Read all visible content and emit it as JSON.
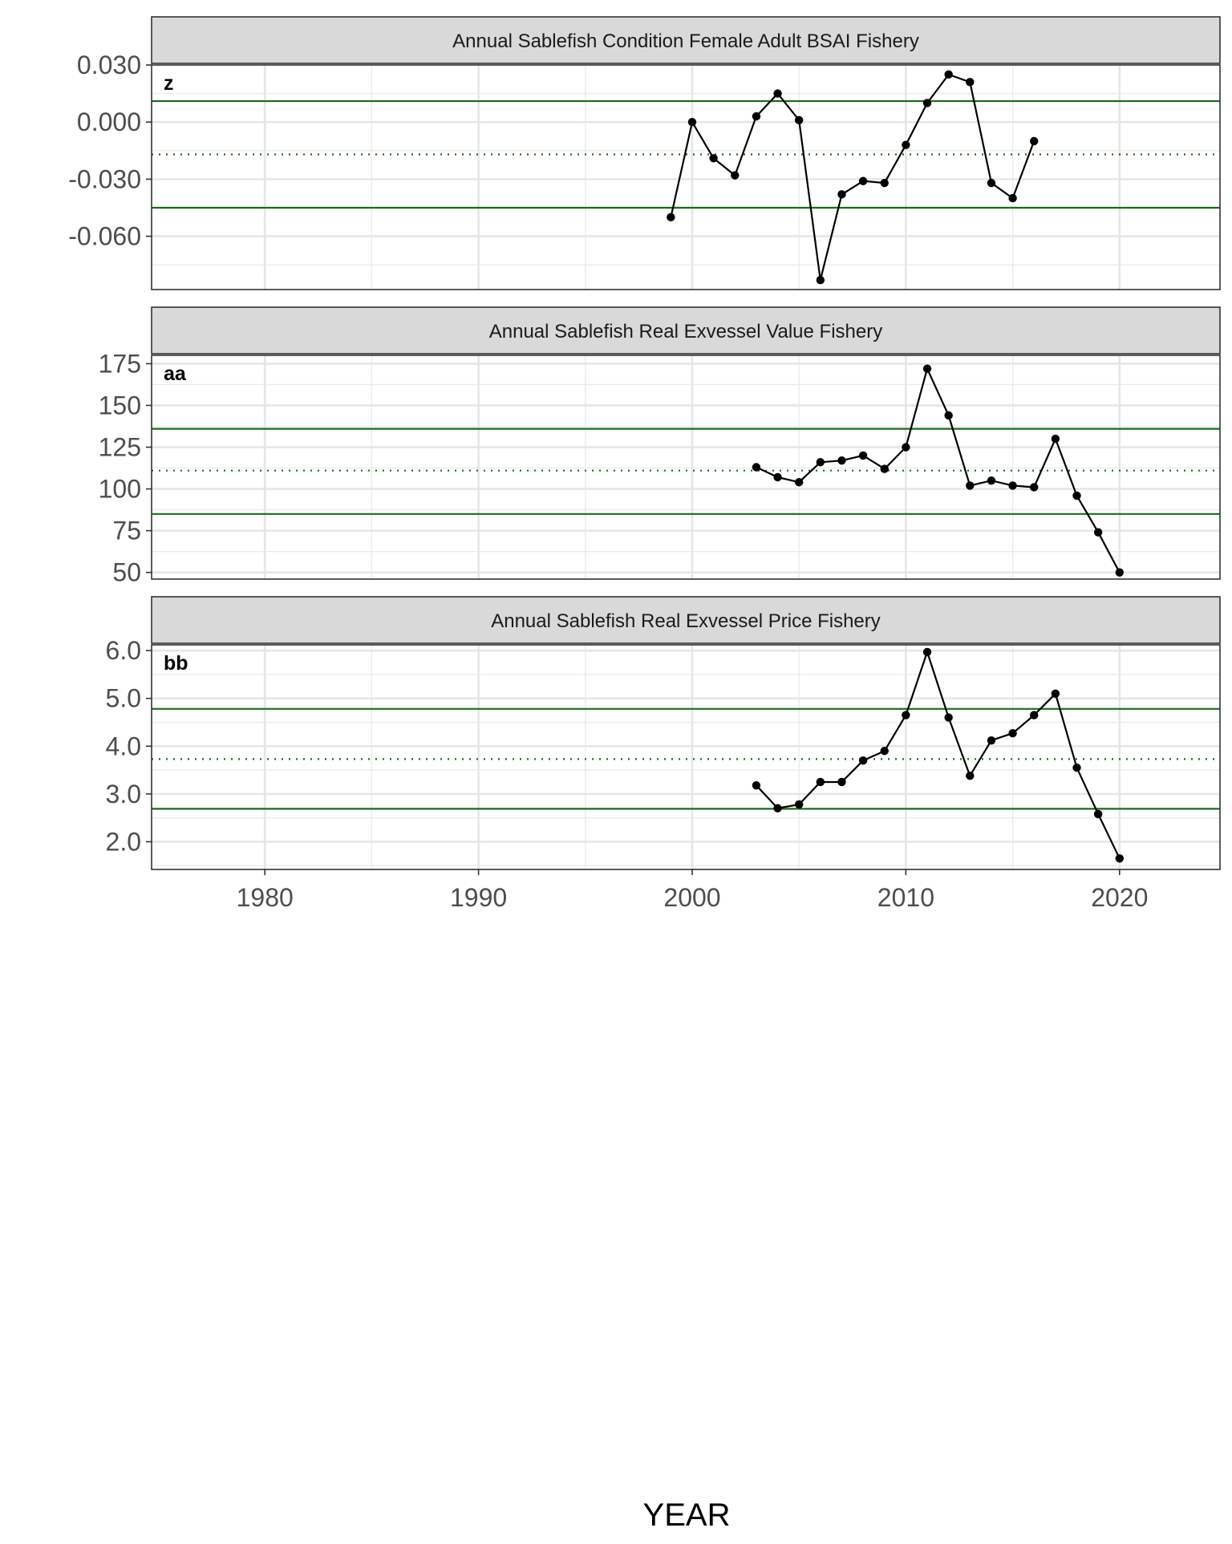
{
  "chart_data": [
    {
      "type": "line",
      "title": "Annual Sablefish Condition Female Adult BSAI Fishery",
      "tag": "z",
      "x": [
        1999,
        2000,
        2001,
        2002,
        2003,
        2004,
        2005,
        2006,
        2007,
        2008,
        2009,
        2010,
        2011,
        2012,
        2013,
        2014,
        2015,
        2016
      ],
      "values": [
        -0.05,
        0.0,
        -0.019,
        -0.028,
        0.003,
        0.015,
        0.001,
        -0.083,
        -0.038,
        -0.031,
        -0.032,
        -0.012,
        0.01,
        0.025,
        0.021,
        -0.032,
        -0.04,
        -0.01
      ],
      "mean": -0.017,
      "upper_sd": 0.011,
      "lower_sd": -0.045,
      "ylim": [
        -0.088,
        0.03
      ],
      "yticks": [
        0.03,
        0.0,
        -0.03,
        -0.06
      ],
      "ytick_labels": [
        "0.030",
        "0.000",
        "-0.030",
        "-0.060"
      ],
      "xlim": [
        1974.7,
        2024.7
      ],
      "grid": true,
      "colors": {
        "line": "#000000",
        "point": "#000000",
        "reference": "#1a6b1a"
      }
    },
    {
      "type": "line",
      "title": "Annual Sablefish Real Exvessel Value Fishery",
      "tag": "aa",
      "x": [
        2003,
        2004,
        2005,
        2006,
        2007,
        2008,
        2009,
        2010,
        2011,
        2012,
        2013,
        2014,
        2015,
        2016,
        2017,
        2018,
        2019,
        2020
      ],
      "values": [
        113,
        107,
        104,
        116,
        117,
        120,
        112,
        125,
        172,
        144,
        102,
        105,
        102,
        101,
        130,
        96,
        74,
        50
      ],
      "mean": 111,
      "upper_sd": 136,
      "lower_sd": 85,
      "ylim": [
        46,
        180
      ],
      "yticks": [
        175,
        150,
        125,
        100,
        75,
        50
      ],
      "ytick_labels": [
        "175",
        "150",
        "125",
        "100",
        "75",
        "50"
      ],
      "xlim": [
        1974.7,
        2024.7
      ],
      "grid": true,
      "colors": {
        "line": "#000000",
        "point": "#000000",
        "reference": "#1a6b1a"
      }
    },
    {
      "type": "line",
      "title": "Annual Sablefish Real Exvessel Price Fishery",
      "tag": "bb",
      "x": [
        2003,
        2004,
        2005,
        2006,
        2007,
        2008,
        2009,
        2010,
        2011,
        2012,
        2013,
        2014,
        2015,
        2016,
        2017,
        2018,
        2019,
        2020
      ],
      "values": [
        3.18,
        2.7,
        2.78,
        3.25,
        3.25,
        3.7,
        3.9,
        4.65,
        5.97,
        4.6,
        3.38,
        4.12,
        4.27,
        4.65,
        5.1,
        3.55,
        2.58,
        1.65
      ],
      "mean": 3.73,
      "upper_sd": 4.78,
      "lower_sd": 2.69,
      "ylim": [
        1.42,
        6.12
      ],
      "yticks": [
        6.0,
        5.0,
        4.0,
        3.0,
        2.0
      ],
      "ytick_labels": [
        "6.0",
        "5.0",
        "4.0",
        "3.0",
        "2.0"
      ],
      "xlim": [
        1974.7,
        2024.7
      ],
      "grid": true,
      "colors": {
        "line": "#000000",
        "point": "#000000",
        "reference": "#1a6b1a"
      }
    }
  ],
  "x_axis": {
    "title": "YEAR",
    "ticks": [
      1980,
      1990,
      2000,
      2010,
      2020
    ],
    "tick_labels": [
      "1980",
      "1990",
      "2000",
      "2010",
      "2020"
    ],
    "minor_ticks": [
      1985,
      1995,
      2005,
      2015
    ]
  }
}
